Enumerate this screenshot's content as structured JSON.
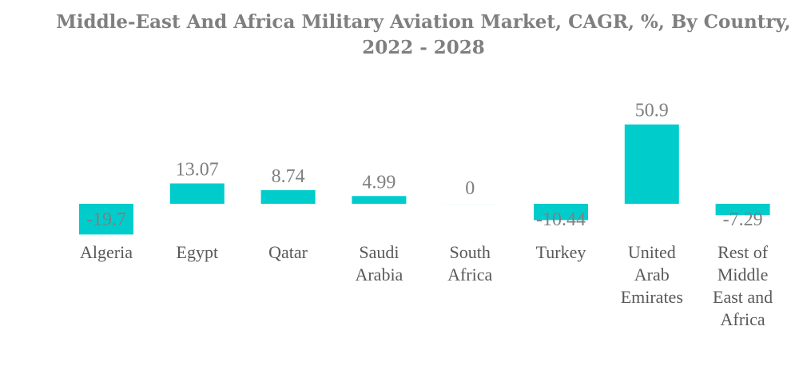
{
  "chart_data": {
    "type": "bar",
    "title": "Middle-East And Africa Military Aviation Market, CAGR, %, By Country, 2022 - 2028",
    "xlabel": "",
    "ylabel": "",
    "categories": [
      [
        "Algeria"
      ],
      [
        "Egypt"
      ],
      [
        "Qatar"
      ],
      [
        "Saudi",
        "Arabia"
      ],
      [
        "South",
        "Africa"
      ],
      [
        "Turkey"
      ],
      [
        "United",
        "Arab",
        "Emirates"
      ],
      [
        "Rest of",
        "Middle",
        "East and",
        "Africa"
      ]
    ],
    "values": [
      -19.7,
      13.07,
      8.74,
      4.99,
      0,
      -10.44,
      50.9,
      -7.29
    ],
    "value_labels": [
      "-19.7",
      "13.07",
      "8.74",
      "4.99",
      "0",
      "-10.44",
      "50.9",
      "-7.29"
    ],
    "bar_color": "#00CCCC",
    "grid": false,
    "legend": "none"
  }
}
